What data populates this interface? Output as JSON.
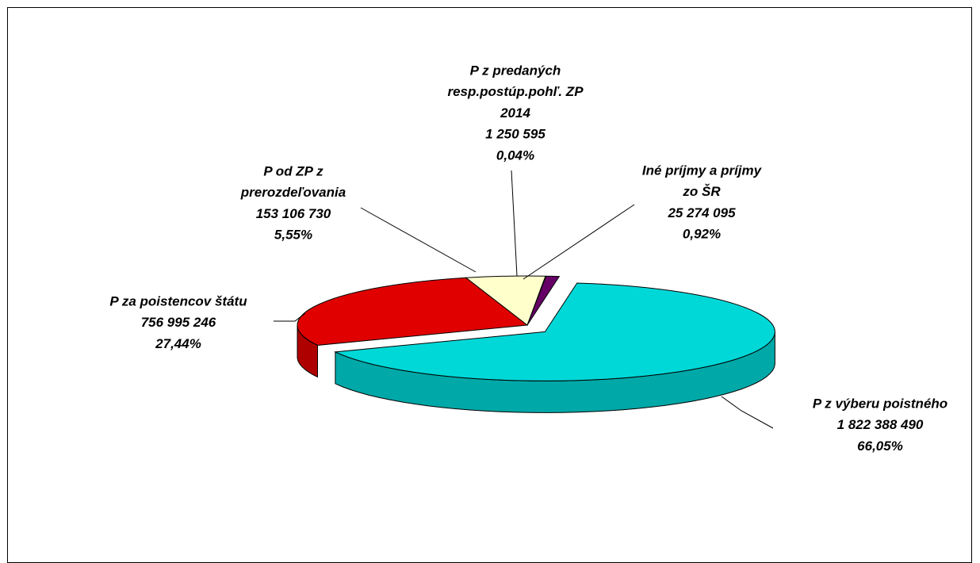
{
  "chart_data": {
    "type": "pie3d",
    "categories": [
      [
        "P z výberu poistného"
      ],
      [
        "P za poistencov štátu"
      ],
      [
        "P od ZP z",
        "prerozdeľovania"
      ],
      [
        "P z predaných",
        "resp.postúp.pohľ. ZP",
        "2014"
      ],
      [
        "Iné príjmy a príjmy",
        "zo ŠR"
      ]
    ],
    "values": [
      1822388490,
      756995246,
      153106730,
      1250595,
      25274095
    ],
    "value_labels": [
      "1 822 388 490",
      "756 995 246",
      "153 106 730",
      "1 250 595",
      "25 274 095"
    ],
    "percents": [
      66.05,
      27.44,
      5.55,
      0.04,
      0.92
    ],
    "percent_labels": [
      "66,05%",
      "27,44%",
      "5,55%",
      "0,04%",
      "0,92%"
    ],
    "colors": [
      "#00d8d8",
      "#e00000",
      "#ffffcc",
      "#00c000",
      "#660066"
    ]
  }
}
